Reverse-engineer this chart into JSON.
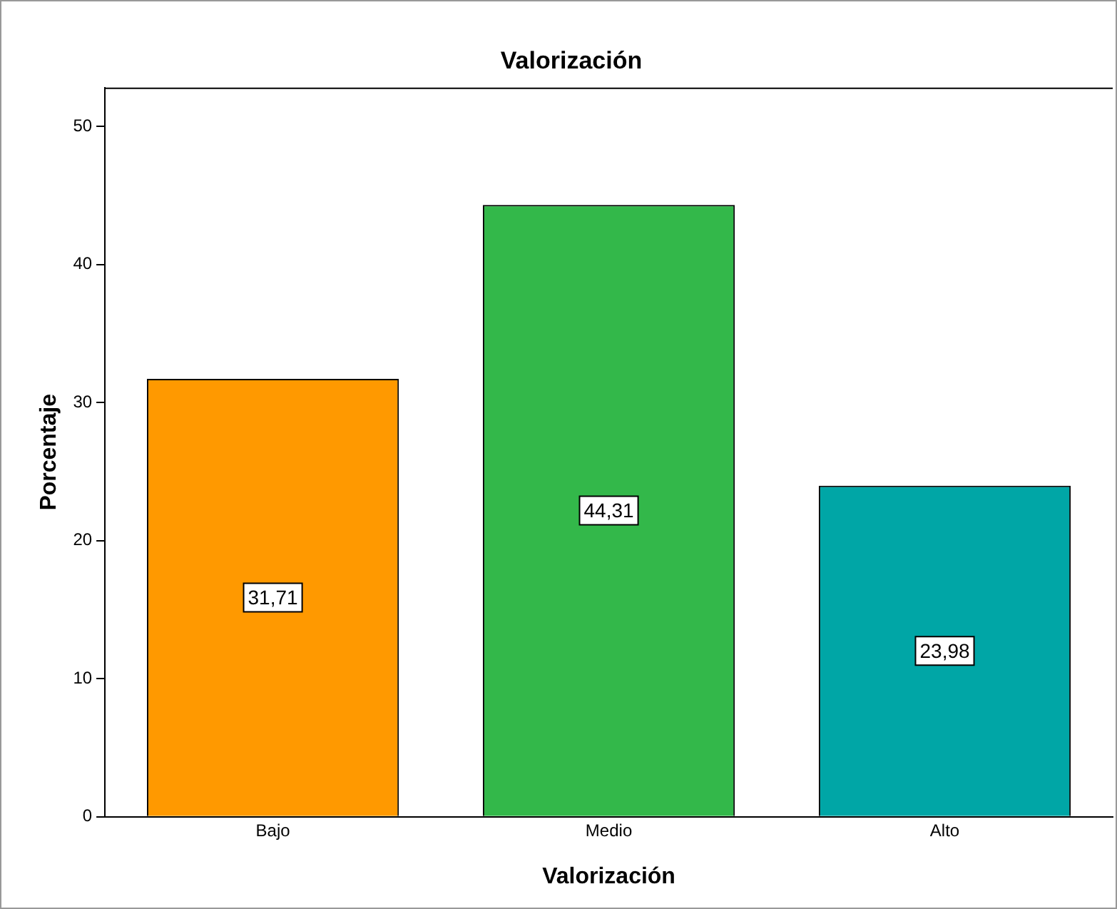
{
  "chart_data": {
    "type": "bar",
    "title": "Valorización",
    "xlabel": "Valorización",
    "ylabel": "Porcentaje",
    "categories": [
      "Bajo",
      "Medio",
      "Alto"
    ],
    "values": [
      31.71,
      44.31,
      23.98
    ],
    "value_labels": [
      "31,71",
      "44,31",
      "23,98"
    ],
    "colors": [
      "#ff9900",
      "#33b84a",
      "#00a6a6"
    ],
    "ylim": [
      0,
      52.8
    ],
    "yticks": [
      0,
      10,
      20,
      30,
      40,
      50
    ],
    "grid": false,
    "legend": false
  }
}
